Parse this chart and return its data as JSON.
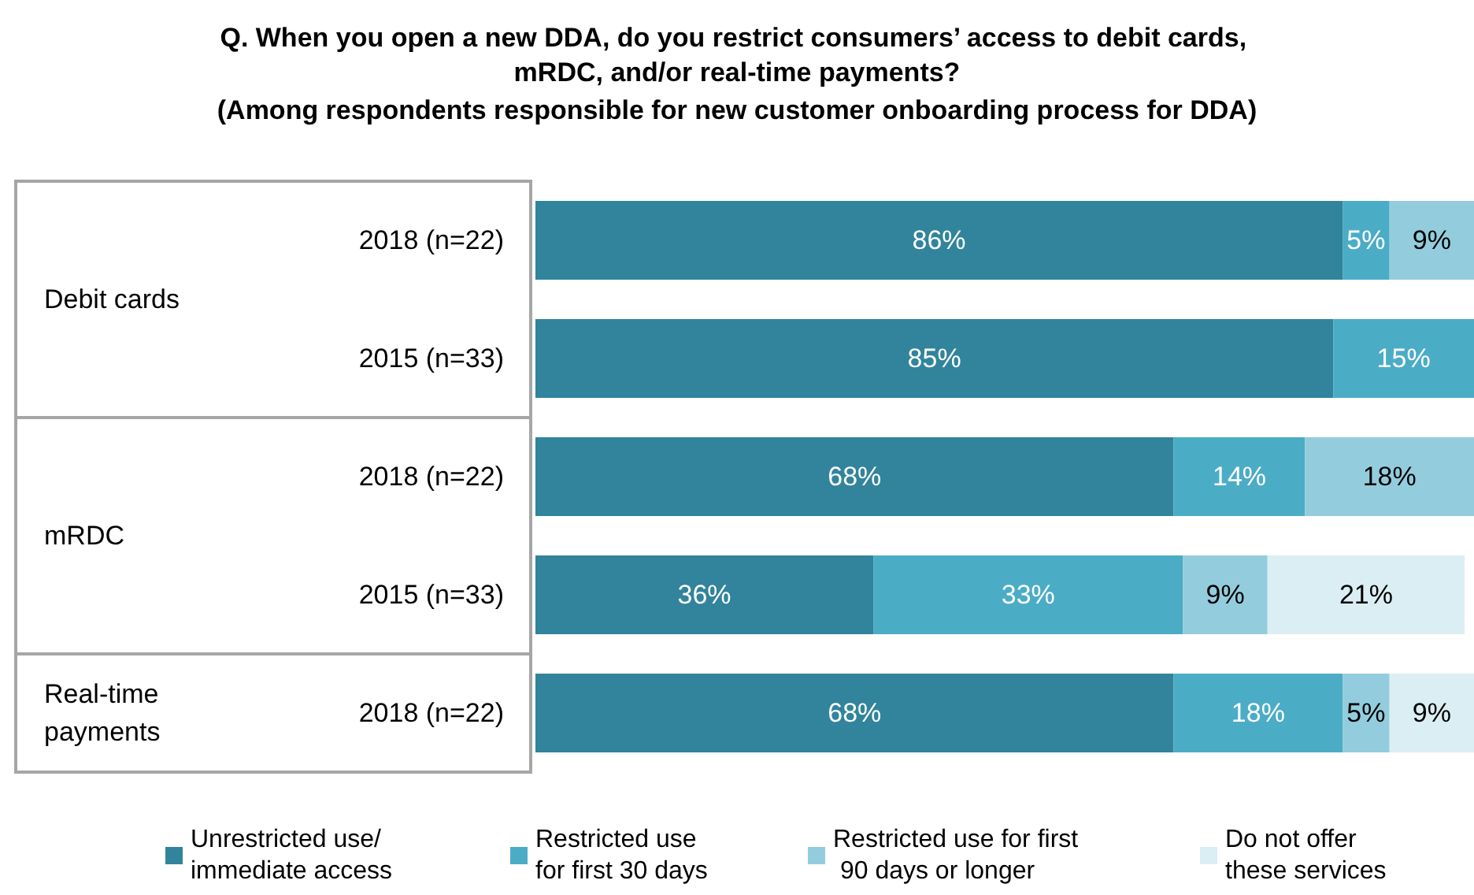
{
  "chart_data": {
    "type": "bar",
    "orientation": "horizontal",
    "stacked": true,
    "title": "Q. When you open a new DDA, do you restrict consumers’ access to debit cards, mRDC, and/or real-time payments?",
    "subtitle": "(Among respondents responsible for new customer onboarding process for DDA)",
    "categories": [
      "2018 (n=22)",
      "2015 (n=33)",
      "2018 (n=22)",
      "2015 (n=33)",
      "2018 (n=22)"
    ],
    "annotations": [
      "Debit cards",
      "mRDC",
      "Real-time payments"
    ],
    "series": [
      {
        "name": "Unrestricted use/ immediate access",
        "color": "#31849b",
        "values": [
          86,
          85,
          68,
          36,
          68
        ],
        "value_labels": [
          "86%",
          "85%",
          "68%",
          "36%",
          "68%"
        ]
      },
      {
        "name": "Restricted use for first 30 days",
        "color": "#4bacc6",
        "values": [
          5,
          15,
          14,
          33,
          18
        ],
        "value_labels": [
          "5%",
          "15%",
          "14%",
          "33%",
          "18%"
        ]
      },
      {
        "name": "Restricted use for first 90 days or longer",
        "color": "#93cddd",
        "values": [
          9,
          null,
          18,
          9,
          5
        ],
        "value_labels": [
          "9%",
          null,
          "18%",
          "9%",
          "5%"
        ]
      },
      {
        "name": "Do not offer these services",
        "color": "#dbeef4",
        "values": [
          null,
          null,
          null,
          21,
          9
        ],
        "value_labels": [
          null,
          null,
          null,
          "21%",
          "9%"
        ]
      }
    ],
    "legend": "bottom"
  }
}
